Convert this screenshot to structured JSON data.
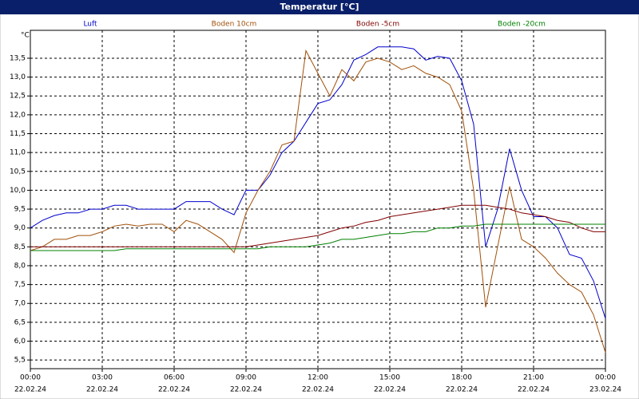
{
  "chart_data": {
    "type": "line",
    "title": "Temperatur [°C]",
    "y_label": "°C",
    "x": [
      0,
      0.5,
      1,
      1.5,
      2,
      2.5,
      3,
      3.5,
      4,
      4.5,
      5,
      5.5,
      6,
      6.5,
      7,
      7.5,
      8,
      8.5,
      9,
      9.5,
      10,
      10.5,
      11,
      11.5,
      12,
      12.5,
      13,
      13.5,
      14,
      14.5,
      15,
      15.5,
      16,
      16.5,
      17,
      17.5,
      18,
      18.5,
      19,
      19.5,
      20,
      20.5,
      21,
      21.5,
      22,
      22.5,
      23,
      23.5,
      24
    ],
    "series": [
      {
        "name": "Luft",
        "color": "#0000cc",
        "values": [
          9.0,
          9.2,
          9.33,
          9.4,
          9.4,
          9.5,
          9.5,
          9.6,
          9.6,
          9.5,
          9.5,
          9.5,
          9.5,
          9.7,
          9.7,
          9.7,
          9.5,
          9.35,
          10.0,
          10.0,
          10.4,
          11.0,
          11.3,
          11.8,
          12.3,
          12.4,
          12.8,
          13.45,
          13.6,
          13.8,
          13.8,
          13.8,
          13.75,
          13.45,
          13.55,
          13.5,
          12.9,
          11.75,
          8.5,
          9.5,
          11.1,
          10.0,
          9.3,
          9.3,
          9.0,
          8.3,
          8.2,
          7.6,
          6.6
        ]
      },
      {
        "name": "Boden 10cm",
        "color": "#a0500a",
        "values": [
          8.4,
          8.5,
          8.7,
          8.7,
          8.8,
          8.8,
          8.9,
          9.05,
          9.1,
          9.05,
          9.1,
          9.1,
          8.9,
          9.2,
          9.1,
          8.9,
          8.7,
          8.35,
          9.4,
          10.0,
          10.5,
          11.2,
          11.3,
          13.7,
          13.1,
          12.5,
          13.2,
          12.9,
          13.4,
          13.5,
          13.4,
          13.2,
          13.3,
          13.1,
          13.0,
          12.8,
          12.1,
          10.0,
          6.9,
          8.5,
          10.1,
          8.7,
          8.5,
          8.2,
          7.8,
          7.5,
          7.3,
          6.7,
          5.7
        ]
      },
      {
        "name": "Boden -5cm",
        "color": "#800000",
        "values": [
          8.5,
          8.5,
          8.5,
          8.5,
          8.5,
          8.5,
          8.5,
          8.5,
          8.5,
          8.5,
          8.5,
          8.5,
          8.5,
          8.5,
          8.5,
          8.5,
          8.5,
          8.5,
          8.5,
          8.55,
          8.6,
          8.65,
          8.7,
          8.75,
          8.8,
          8.9,
          9.0,
          9.05,
          9.15,
          9.2,
          9.3,
          9.35,
          9.4,
          9.45,
          9.5,
          9.55,
          9.6,
          9.6,
          9.6,
          9.55,
          9.5,
          9.4,
          9.35,
          9.3,
          9.2,
          9.15,
          9.0,
          8.9,
          8.9
        ]
      },
      {
        "name": "Boden -20cm",
        "color": "#008000",
        "values": [
          8.4,
          8.4,
          8.4,
          8.4,
          8.4,
          8.4,
          8.4,
          8.4,
          8.45,
          8.45,
          8.45,
          8.45,
          8.45,
          8.45,
          8.45,
          8.45,
          8.45,
          8.45,
          8.45,
          8.45,
          8.5,
          8.5,
          8.5,
          8.5,
          8.55,
          8.6,
          8.7,
          8.7,
          8.75,
          8.8,
          8.85,
          8.85,
          8.9,
          8.9,
          9.0,
          9.0,
          9.05,
          9.05,
          9.1,
          9.1,
          9.1,
          9.1,
          9.1,
          9.1,
          9.1,
          9.1,
          9.1,
          9.1,
          9.1
        ]
      }
    ],
    "xlim": [
      0,
      24
    ],
    "xticks": [
      {
        "value": 0,
        "label": "00:00"
      },
      {
        "value": 3,
        "label": "03:00"
      },
      {
        "value": 6,
        "label": "06:00"
      },
      {
        "value": 9,
        "label": "09:00"
      },
      {
        "value": 12,
        "label": "12:00"
      },
      {
        "value": 15,
        "label": "15:00"
      },
      {
        "value": 18,
        "label": "18:00"
      },
      {
        "value": 21,
        "label": "21:00"
      },
      {
        "value": 24,
        "label": "00:00"
      }
    ],
    "xtick_dates": [
      "22.02.24",
      "22.02.24",
      "22.02.24",
      "22.02.24",
      "22.02.24",
      "22.02.24",
      "22.02.24",
      "22.02.24",
      "23.02.24"
    ],
    "ylim": [
      5.27,
      14.24
    ],
    "yticks": [
      {
        "value": 5.5,
        "label": "5,5"
      },
      {
        "value": 6,
        "label": "6,0"
      },
      {
        "value": 6.5,
        "label": "6,5"
      },
      {
        "value": 7,
        "label": "7,0"
      },
      {
        "value": 7.5,
        "label": "7,5"
      },
      {
        "value": 8,
        "label": "8,0"
      },
      {
        "value": 8.5,
        "label": "8,5"
      },
      {
        "value": 9,
        "label": "9,0"
      },
      {
        "value": 9.5,
        "label": "9,5"
      },
      {
        "value": 10,
        "label": "10,0"
      },
      {
        "value": 10.5,
        "label": "10,5"
      },
      {
        "value": 11,
        "label": "11,0"
      },
      {
        "value": 11.5,
        "label": "11,5"
      },
      {
        "value": 12,
        "label": "12,0"
      },
      {
        "value": 12.5,
        "label": "12,5"
      },
      {
        "value": 13,
        "label": "13,0"
      },
      {
        "value": 13.5,
        "label": "13,5"
      }
    ],
    "grid": true
  }
}
